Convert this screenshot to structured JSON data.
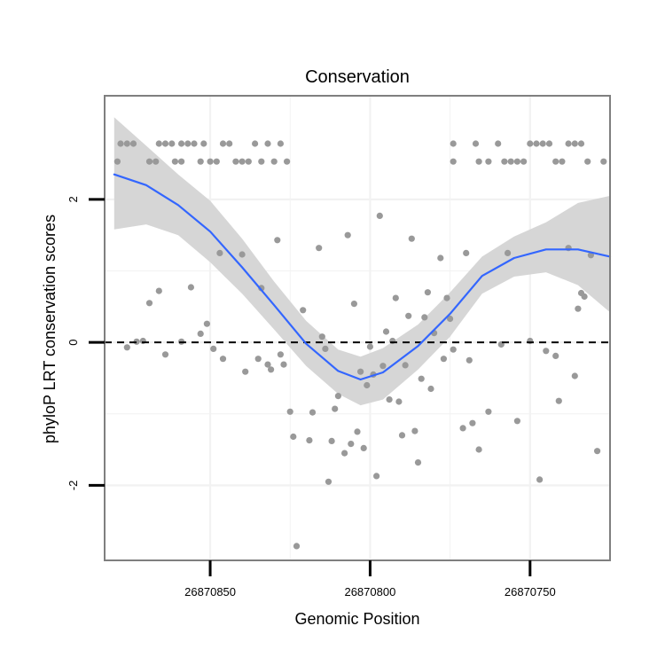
{
  "chart_data": {
    "type": "scatter",
    "title": "Conservation",
    "xlabel": "Genomic Position",
    "ylabel": "phyloP LRT conservation scores",
    "x_reversed": true,
    "xlim": [
      26870883,
      26870725
    ],
    "ylim": [
      -3.05,
      3.45
    ],
    "x_ticks": [
      26870850,
      26870800,
      26870750
    ],
    "y_ticks": [
      2,
      0,
      -2
    ],
    "grid": true,
    "legend": "none",
    "reference_line": {
      "y": 0,
      "style": "dashed"
    },
    "colors": {
      "points": "#999999",
      "smooth_line": "#3366FF",
      "confidence_band": "#D4D4D4",
      "panel_border": "#7f7f7f",
      "grid": "#f2f2f2",
      "axis": "#000000"
    },
    "points": [
      [
        26870878,
        2.78
      ],
      [
        26870876,
        2.78
      ],
      [
        26870874,
        2.78
      ],
      [
        26870879,
        2.53
      ],
      [
        26870869,
        2.53
      ],
      [
        26870867,
        2.53
      ],
      [
        26870866,
        2.78
      ],
      [
        26870864,
        2.78
      ],
      [
        26870862,
        2.78
      ],
      [
        26870861,
        2.53
      ],
      [
        26870859,
        2.53
      ],
      [
        26870859,
        2.78
      ],
      [
        26870857,
        2.78
      ],
      [
        26870855,
        2.78
      ],
      [
        26870853,
        2.53
      ],
      [
        26870852,
        2.78
      ],
      [
        26870850,
        2.53
      ],
      [
        26870848,
        2.53
      ],
      [
        26870846,
        2.78
      ],
      [
        26870844,
        2.78
      ],
      [
        26870842,
        2.53
      ],
      [
        26870840,
        2.53
      ],
      [
        26870838,
        2.53
      ],
      [
        26870836,
        2.78
      ],
      [
        26870834,
        2.53
      ],
      [
        26870832,
        2.78
      ],
      [
        26870830,
        2.53
      ],
      [
        26870828,
        2.78
      ],
      [
        26870826,
        2.53
      ],
      [
        26870774,
        2.78
      ],
      [
        26870774,
        2.53
      ],
      [
        26870767,
        2.78
      ],
      [
        26870766,
        2.53
      ],
      [
        26870763,
        2.53
      ],
      [
        26870760,
        2.78
      ],
      [
        26870758,
        2.53
      ],
      [
        26870756,
        2.53
      ],
      [
        26870754,
        2.53
      ],
      [
        26870752,
        2.53
      ],
      [
        26870750,
        2.78
      ],
      [
        26870748,
        2.78
      ],
      [
        26870746,
        2.78
      ],
      [
        26870744,
        2.78
      ],
      [
        26870742,
        2.53
      ],
      [
        26870740,
        2.53
      ],
      [
        26870738,
        2.78
      ],
      [
        26870736,
        2.78
      ],
      [
        26870734,
        2.78
      ],
      [
        26870732,
        2.53
      ],
      [
        26870727,
        2.53
      ],
      [
        26870876,
        -0.07
      ],
      [
        26870873,
        0.01
      ],
      [
        26870871,
        0.02
      ],
      [
        26870869,
        0.55
      ],
      [
        26870866,
        0.72
      ],
      [
        26870864,
        -0.17
      ],
      [
        26870859,
        0.01
      ],
      [
        26870856,
        0.77
      ],
      [
        26870853,
        0.12
      ],
      [
        26870851,
        0.26
      ],
      [
        26870849,
        -0.09
      ],
      [
        26870847,
        1.25
      ],
      [
        26870846,
        -0.23
      ],
      [
        26870840,
        1.23
      ],
      [
        26870839,
        -0.41
      ],
      [
        26870835,
        -0.23
      ],
      [
        26870834,
        0.76
      ],
      [
        26870832,
        -0.31
      ],
      [
        26870831,
        -0.38
      ],
      [
        26870829,
        1.43
      ],
      [
        26870828,
        -0.17
      ],
      [
        26870827,
        -0.31
      ],
      [
        26870825,
        -0.97
      ],
      [
        26870824,
        -1.32
      ],
      [
        26870823,
        -2.85
      ],
      [
        26870821,
        0.45
      ],
      [
        26870819,
        -1.37
      ],
      [
        26870818,
        -0.98
      ],
      [
        26870816,
        1.32
      ],
      [
        26870815,
        0.08
      ],
      [
        26870814,
        -0.09
      ],
      [
        26870813,
        -1.95
      ],
      [
        26870812,
        -1.38
      ],
      [
        26870811,
        -0.93
      ],
      [
        26870810,
        -0.75
      ],
      [
        26870808,
        -1.55
      ],
      [
        26870807,
        1.5
      ],
      [
        26870806,
        -1.42
      ],
      [
        26870805,
        0.54
      ],
      [
        26870804,
        -1.25
      ],
      [
        26870803,
        -0.41
      ],
      [
        26870802,
        -1.48
      ],
      [
        26870801,
        -0.6
      ],
      [
        26870800,
        -0.06
      ],
      [
        26870799,
        -0.45
      ],
      [
        26870798,
        -1.87
      ],
      [
        26870797,
        1.77
      ],
      [
        26870796,
        -0.33
      ],
      [
        26870795,
        0.15
      ],
      [
        26870794,
        -0.8
      ],
      [
        26870793,
        0.02
      ],
      [
        26870792,
        0.62
      ],
      [
        26870791,
        -0.83
      ],
      [
        26870790,
        -1.3
      ],
      [
        26870789,
        -0.32
      ],
      [
        26870788,
        0.37
      ],
      [
        26870787,
        1.45
      ],
      [
        26870786,
        -1.24
      ],
      [
        26870785,
        -1.68
      ],
      [
        26870784,
        -0.51
      ],
      [
        26870783,
        0.35
      ],
      [
        26870782,
        0.7
      ],
      [
        26870781,
        -0.65
      ],
      [
        26870780,
        0.13
      ],
      [
        26870778,
        1.18
      ],
      [
        26870777,
        -0.23
      ],
      [
        26870776,
        0.62
      ],
      [
        26870775,
        0.33
      ],
      [
        26870774,
        -0.1
      ],
      [
        26870771,
        -1.2
      ],
      [
        26870770,
        1.25
      ],
      [
        26870769,
        -0.25
      ],
      [
        26870768,
        -1.13
      ],
      [
        26870766,
        -1.5
      ],
      [
        26870763,
        -0.97
      ],
      [
        26870759,
        -0.03
      ],
      [
        26870757,
        1.25
      ],
      [
        26870754,
        -1.1
      ],
      [
        26870750,
        0.02
      ],
      [
        26870747,
        -1.92
      ],
      [
        26870745,
        -0.12
      ],
      [
        26870742,
        -0.19
      ],
      [
        26870741,
        -0.82
      ],
      [
        26870738,
        1.32
      ],
      [
        26870736,
        -0.47
      ],
      [
        26870735,
        0.47
      ],
      [
        26870734,
        0.69
      ],
      [
        26870733,
        0.64
      ],
      [
        26870731,
        1.22
      ],
      [
        26870729,
        -1.52
      ]
    ],
    "smooth": [
      [
        26870880,
        2.35
      ],
      [
        26870870,
        2.2
      ],
      [
        26870860,
        1.92
      ],
      [
        26870850,
        1.55
      ],
      [
        26870840,
        1.05
      ],
      [
        26870830,
        0.52
      ],
      [
        26870820,
        -0.02
      ],
      [
        26870810,
        -0.4
      ],
      [
        26870803,
        -0.52
      ],
      [
        26870796,
        -0.42
      ],
      [
        26870785,
        -0.05
      ],
      [
        26870775,
        0.4
      ],
      [
        26870765,
        0.93
      ],
      [
        26870755,
        1.18
      ],
      [
        26870745,
        1.3
      ],
      [
        26870735,
        1.3
      ],
      [
        26870725,
        1.2
      ]
    ],
    "band": [
      [
        26870880,
        1.58,
        3.15
      ],
      [
        26870870,
        1.65,
        2.75
      ],
      [
        26870860,
        1.5,
        2.35
      ],
      [
        26870850,
        1.12,
        1.98
      ],
      [
        26870840,
        0.68,
        1.45
      ],
      [
        26870830,
        0.18,
        0.85
      ],
      [
        26870820,
        -0.33,
        0.3
      ],
      [
        26870810,
        -0.72,
        -0.1
      ],
      [
        26870803,
        -0.88,
        -0.2
      ],
      [
        26870796,
        -0.8,
        -0.08
      ],
      [
        26870785,
        -0.38,
        0.25
      ],
      [
        26870775,
        0.08,
        0.7
      ],
      [
        26870765,
        0.68,
        1.2
      ],
      [
        26870755,
        0.92,
        1.48
      ],
      [
        26870745,
        0.98,
        1.68
      ],
      [
        26870735,
        0.8,
        1.95
      ],
      [
        26870725,
        0.42,
        2.05
      ]
    ]
  }
}
